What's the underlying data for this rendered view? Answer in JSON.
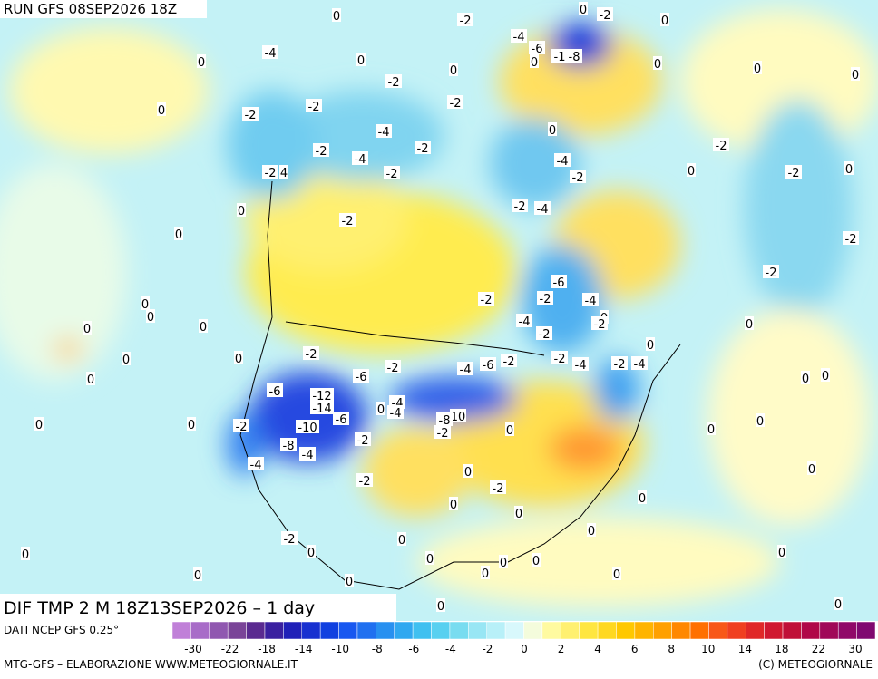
{
  "header": {
    "run": "RUN GFS 08SEP2026 18Z"
  },
  "map": {
    "product": "DIF TMP 2 M 18Z13SEP2026 – 1 day",
    "contour_labels": [
      0,
      -2,
      0,
      -2,
      0,
      -4,
      -6,
      -1,
      -8,
      0,
      -4,
      0,
      0,
      0,
      0,
      0,
      -2,
      0,
      -2,
      0,
      -2,
      -2,
      -4,
      -2,
      -2,
      -4,
      -2,
      0,
      -4,
      -2,
      -2,
      0,
      -2,
      0,
      -2,
      4,
      -2,
      -2,
      -4,
      0,
      0,
      -2,
      -2,
      -6,
      -2,
      -2,
      -4,
      -4,
      0,
      -2,
      -2,
      0,
      0,
      0,
      0,
      0,
      -2,
      0,
      0,
      -2,
      -4,
      -6,
      -2,
      -2,
      -4,
      -2,
      -4,
      0,
      -6,
      0,
      0,
      0,
      -6,
      -12,
      -14,
      -4,
      0,
      -4,
      -6,
      -10,
      0,
      0,
      -2,
      10,
      -8,
      -2,
      0,
      0,
      0,
      -8,
      -2,
      -4,
      -4,
      0,
      -2,
      -2,
      0,
      0,
      0,
      0,
      0,
      -2,
      0,
      0,
      0,
      0,
      0,
      0,
      0,
      0,
      0,
      0,
      0,
      0,
      0,
      0
    ]
  },
  "colorbar": {
    "source": "DATI NCEP GFS 0.25°",
    "ticks": [
      -30,
      -22,
      -18,
      -14,
      -10,
      -8,
      -6,
      -4,
      -2,
      0,
      2,
      4,
      6,
      8,
      10,
      14,
      18,
      22,
      30
    ],
    "colors": [
      "#c080d8",
      "#a86cc8",
      "#9058b0",
      "#7a4498",
      "#5a2a90",
      "#3a20a0",
      "#2020b8",
      "#1830d0",
      "#1040e0",
      "#1858f0",
      "#2070f0",
      "#2890f0",
      "#30a8f0",
      "#40c0f0",
      "#58d0f0",
      "#78dcf0",
      "#98e6f4",
      "#b8f0f8",
      "#d8f8fc",
      "#f4fcdc",
      "#fffaa0",
      "#fff070",
      "#ffe640",
      "#ffd820",
      "#ffc800",
      "#ffb400",
      "#ffa000",
      "#ff8800",
      "#ff7000",
      "#f85818",
      "#f04020",
      "#e02828",
      "#d01830",
      "#c01038",
      "#b00848",
      "#a00858",
      "#900868",
      "#800870"
    ]
  },
  "footer": {
    "left": "MTG-GFS – ELABORAZIONE WWW.METEOGIORNALE.IT",
    "right": "(C) METEOGIORNALE"
  }
}
